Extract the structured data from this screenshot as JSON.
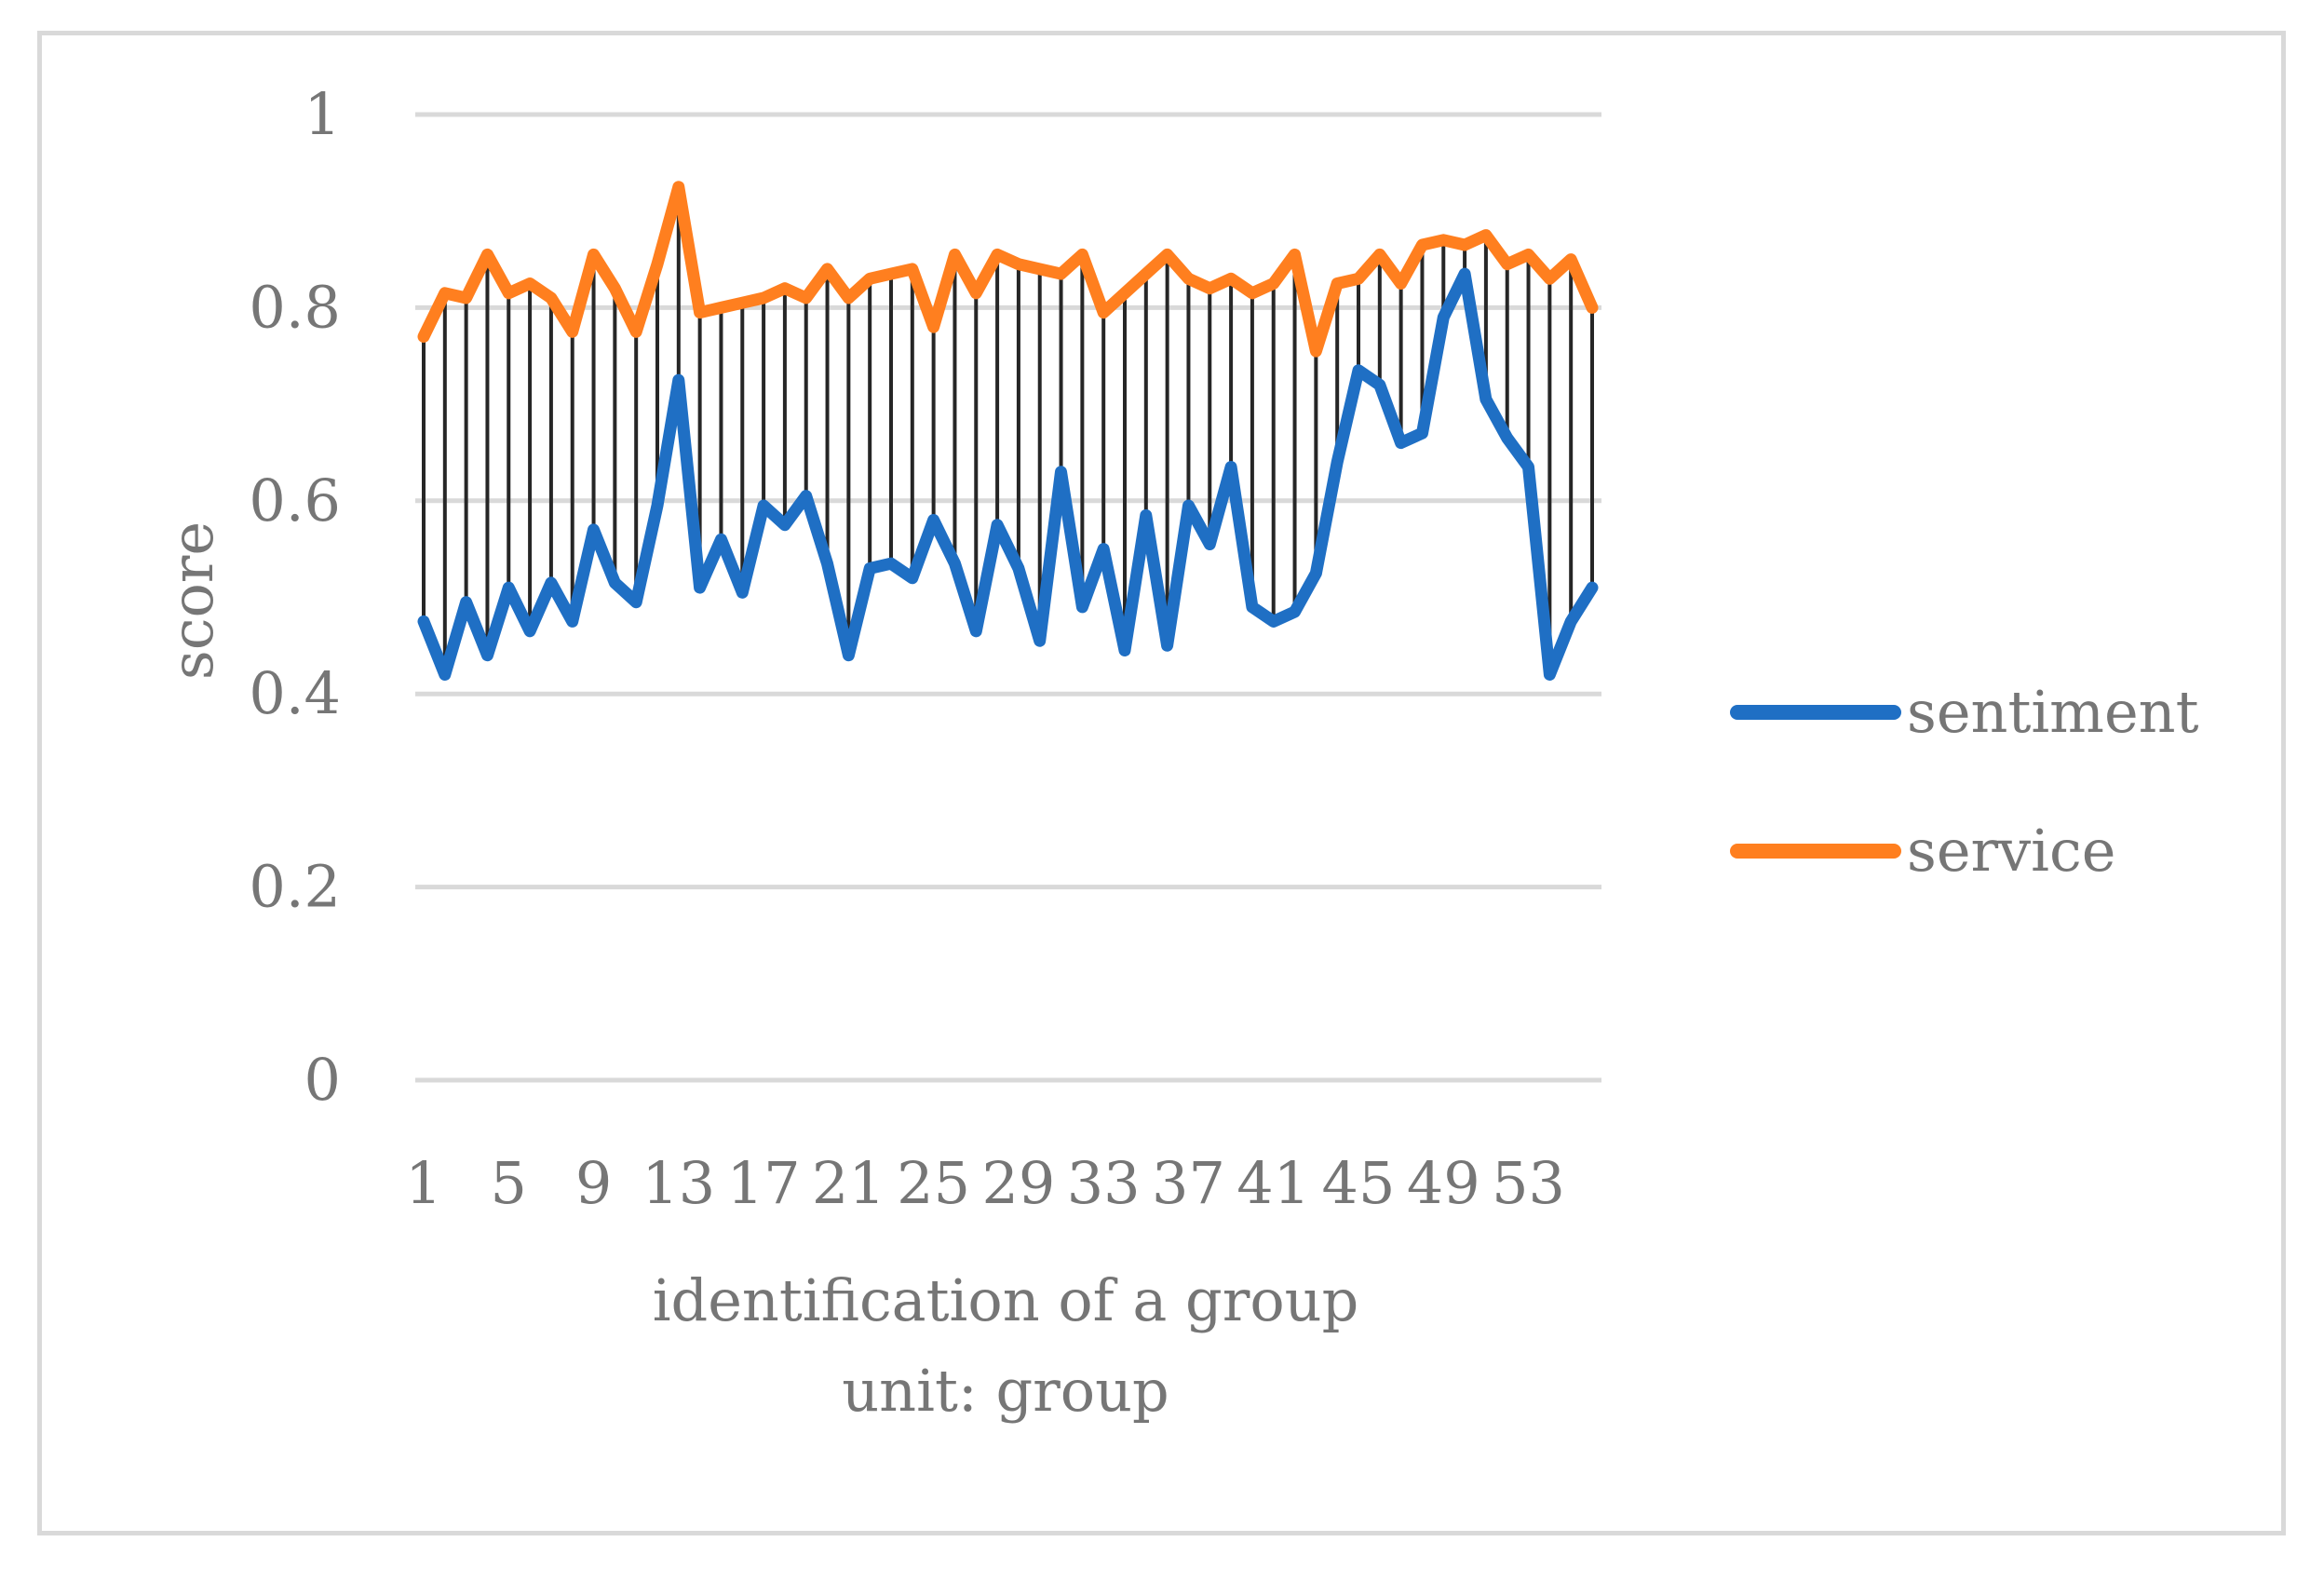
{
  "chart_data": {
    "type": "line",
    "xlabel": "identification of a group",
    "xlabel_sub": "unit: group",
    "ylabel": "score",
    "ylim": [
      0,
      1
    ],
    "yticks": [
      0,
      0.2,
      0.4,
      0.6,
      0.8,
      1
    ],
    "ytick_labels": [
      "0",
      "0.2",
      "0.4",
      "0.6",
      "0.8",
      "1"
    ],
    "xlim": [
      1,
      56
    ],
    "xticks": [
      1,
      5,
      9,
      13,
      17,
      21,
      25,
      29,
      33,
      37,
      41,
      45,
      49,
      53
    ],
    "xtick_labels": [
      "1",
      "5",
      "9",
      "13",
      "17",
      "21",
      "25",
      "29",
      "33",
      "37",
      "41",
      "45",
      "49",
      "53"
    ],
    "grid": true,
    "legend_position": "right",
    "high_low_lines": true,
    "x": [
      1,
      2,
      3,
      4,
      5,
      6,
      7,
      8,
      9,
      10,
      11,
      12,
      13,
      14,
      15,
      16,
      17,
      18,
      19,
      20,
      21,
      22,
      23,
      24,
      25,
      26,
      27,
      28,
      29,
      30,
      31,
      32,
      33,
      34,
      35,
      36,
      37,
      38,
      39,
      40,
      41,
      42,
      43,
      44,
      45,
      46,
      47,
      48,
      49,
      50,
      51,
      52,
      53,
      54,
      55,
      56
    ],
    "series": [
      {
        "name": "sentiment",
        "color": "#1f6fc4",
        "values": [
          0.475,
          0.42,
          0.495,
          0.44,
          0.51,
          0.465,
          0.515,
          0.475,
          0.57,
          0.515,
          0.495,
          0.595,
          0.725,
          0.51,
          0.56,
          0.505,
          0.595,
          0.575,
          0.605,
          0.535,
          0.44,
          0.53,
          0.535,
          0.52,
          0.58,
          0.535,
          0.465,
          0.575,
          0.53,
          0.455,
          0.63,
          0.49,
          0.55,
          0.445,
          0.585,
          0.45,
          0.595,
          0.555,
          0.635,
          0.49,
          0.475,
          0.485,
          0.525,
          0.64,
          0.735,
          0.72,
          0.66,
          0.67,
          0.79,
          0.835,
          0.705,
          0.665,
          0.635,
          0.42,
          0.475,
          0.51
        ]
      },
      {
        "name": "service",
        "color": "#ff7f1f",
        "values": [
          0.77,
          0.815,
          0.81,
          0.855,
          0.815,
          0.825,
          0.81,
          0.775,
          0.855,
          0.82,
          0.775,
          0.845,
          0.925,
          0.795,
          0.8,
          0.805,
          0.81,
          0.82,
          0.81,
          0.84,
          0.81,
          0.83,
          0.835,
          0.84,
          0.78,
          0.855,
          0.815,
          0.855,
          0.845,
          0.84,
          0.835,
          0.855,
          0.795,
          0.815,
          0.835,
          0.855,
          0.83,
          0.82,
          0.83,
          0.815,
          0.825,
          0.855,
          0.755,
          0.825,
          0.83,
          0.855,
          0.825,
          0.865,
          0.87,
          0.865,
          0.875,
          0.845,
          0.855,
          0.83,
          0.85,
          0.8
        ]
      }
    ]
  }
}
